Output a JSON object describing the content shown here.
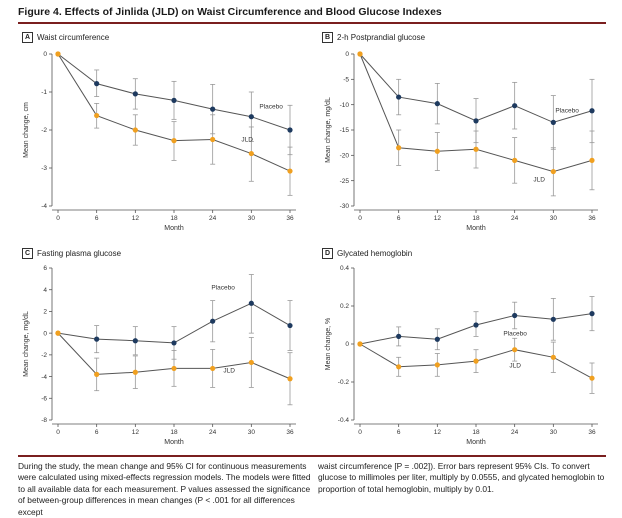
{
  "figure_title": "Figure 4. Effects of Jinlida (JLD) on Waist Circumference and Blood Glucose Indexes",
  "colors": {
    "placebo": "#1e3a5f",
    "jld": "#f0a020",
    "error_bar": "#999999",
    "axis": "#555555",
    "accent_rule": "#7a1f1f"
  },
  "caption": {
    "left": "During the study, the mean change and 95% CI for continuous measurements were calculated using mixed-effects regression models. The models were fitted to all available data for each measurement. P values assessed the significance of between-group differences in mean changes (P < .001 for all differences except",
    "right": "waist circumference [P = .002]). Error bars represent 95% CIs. To convert glucose to millimoles per liter, multiply by 0.0555, and glycated hemoglobin to proportion of total hemoglobin, multiply by 0.01."
  },
  "chart_data": [
    {
      "letter": "A",
      "title": "Waist circumference",
      "type": "line",
      "xlabel": "Month",
      "ylabel": "Mean change, cm",
      "x": [
        0,
        6,
        12,
        18,
        24,
        30,
        36
      ],
      "ylim": [
        -4,
        0
      ],
      "yticks": [
        0,
        -1,
        -2,
        -3,
        -4
      ],
      "ytick_labels": [
        "0",
        "-1",
        "-2",
        "-3",
        "-4"
      ],
      "series": [
        {
          "name": "Placebo",
          "values": [
            0,
            -0.78,
            -1.05,
            -1.22,
            -1.45,
            -1.65,
            -2.0
          ],
          "ci_low": [
            0,
            -1.12,
            -1.45,
            -1.72,
            -2.1,
            -2.3,
            -2.65
          ],
          "ci_high": [
            0,
            -0.42,
            -0.65,
            -0.72,
            -0.8,
            -1.0,
            -1.35
          ]
        },
        {
          "name": "JLD",
          "values": [
            0,
            -1.62,
            -2.0,
            -2.28,
            -2.25,
            -2.62,
            -3.08
          ],
          "ci_low": [
            0,
            -1.95,
            -2.4,
            -2.8,
            -2.9,
            -3.35,
            -3.72
          ],
          "ci_high": [
            0,
            -1.3,
            -1.6,
            -1.78,
            -1.6,
            -1.92,
            -2.45
          ]
        }
      ]
    },
    {
      "letter": "B",
      "title": "2-h Postprandial glucose",
      "type": "line",
      "xlabel": "Month",
      "ylabel": "Mean change, mg/dL",
      "x": [
        0,
        6,
        12,
        18,
        24,
        30,
        36
      ],
      "ylim": [
        -30,
        0
      ],
      "yticks": [
        0,
        -5,
        -10,
        -15,
        -20,
        -25,
        -30
      ],
      "ytick_labels": [
        "0",
        "-5",
        "-10",
        "-15",
        "-20",
        "-25",
        "-30"
      ],
      "series": [
        {
          "name": "Placebo",
          "values": [
            0,
            -8.5,
            -9.8,
            -13.2,
            -10.2,
            -13.5,
            -11.2
          ],
          "ci_low": [
            0,
            -12.0,
            -13.8,
            -17.5,
            -14.8,
            -18.8,
            -17.5
          ],
          "ci_high": [
            0,
            -5.0,
            -5.8,
            -8.8,
            -5.6,
            -8.2,
            -5.0
          ]
        },
        {
          "name": "JLD",
          "values": [
            0,
            -18.5,
            -19.2,
            -18.8,
            -21.0,
            -23.2,
            -21.0
          ],
          "ci_low": [
            0,
            -22.0,
            -23.0,
            -22.5,
            -25.5,
            -28.0,
            -26.8
          ],
          "ci_high": [
            0,
            -15.0,
            -15.5,
            -15.2,
            -16.5,
            -18.5,
            -15.2
          ]
        }
      ]
    },
    {
      "letter": "C",
      "title": "Fasting plasma glucose",
      "type": "line",
      "xlabel": "Month",
      "ylabel": "Mean change, mg/dL",
      "x": [
        0,
        6,
        12,
        18,
        24,
        30,
        36
      ],
      "ylim": [
        -8,
        6
      ],
      "yticks": [
        6,
        4,
        2,
        0,
        -2,
        -4,
        -6,
        -8
      ],
      "ytick_labels": [
        "6",
        "4",
        "2",
        "0",
        "-2",
        "-4",
        "-6",
        "-8"
      ],
      "series": [
        {
          "name": "Placebo",
          "values": [
            0,
            -0.55,
            -0.7,
            -0.9,
            1.1,
            2.75,
            0.7
          ],
          "ci_low": [
            0,
            -1.8,
            -2.0,
            -2.4,
            -0.8,
            0.0,
            -1.6
          ],
          "ci_high": [
            0,
            0.7,
            0.6,
            0.6,
            3.0,
            5.4,
            3.0
          ]
        },
        {
          "name": "JLD",
          "values": [
            0,
            -3.8,
            -3.6,
            -3.25,
            -3.25,
            -2.7,
            -4.2
          ],
          "ci_low": [
            0,
            -5.3,
            -5.1,
            -4.9,
            -5.0,
            -5.0,
            -6.6
          ],
          "ci_high": [
            0,
            -2.3,
            -2.1,
            -1.6,
            -1.5,
            -0.4,
            -1.8
          ]
        }
      ]
    },
    {
      "letter": "D",
      "title": "Glycated hemoglobin",
      "type": "line",
      "xlabel": "Month",
      "ylabel": "Mean change, %",
      "x": [
        0,
        6,
        12,
        18,
        24,
        30,
        36
      ],
      "ylim": [
        -0.4,
        0.4
      ],
      "yticks": [
        0.4,
        0.2,
        0,
        -0.2,
        -0.4
      ],
      "ytick_labels": [
        "0.4",
        "0.2",
        "0",
        "-0.2",
        "-0.4"
      ],
      "series": [
        {
          "name": "Placebo",
          "values": [
            0,
            0.04,
            0.025,
            0.1,
            0.15,
            0.13,
            0.16
          ],
          "ci_low": [
            0,
            -0.01,
            -0.03,
            0.04,
            0.08,
            0.02,
            0.07
          ],
          "ci_high": [
            0,
            0.09,
            0.08,
            0.17,
            0.22,
            0.24,
            0.25
          ]
        },
        {
          "name": "JLD",
          "values": [
            0,
            -0.12,
            -0.11,
            -0.09,
            -0.03,
            -0.07,
            -0.18
          ],
          "ci_low": [
            0,
            -0.17,
            -0.17,
            -0.15,
            -0.09,
            -0.15,
            -0.26
          ],
          "ci_high": [
            0,
            -0.07,
            -0.05,
            -0.03,
            0.03,
            0.01,
            -0.1
          ]
        }
      ]
    }
  ]
}
